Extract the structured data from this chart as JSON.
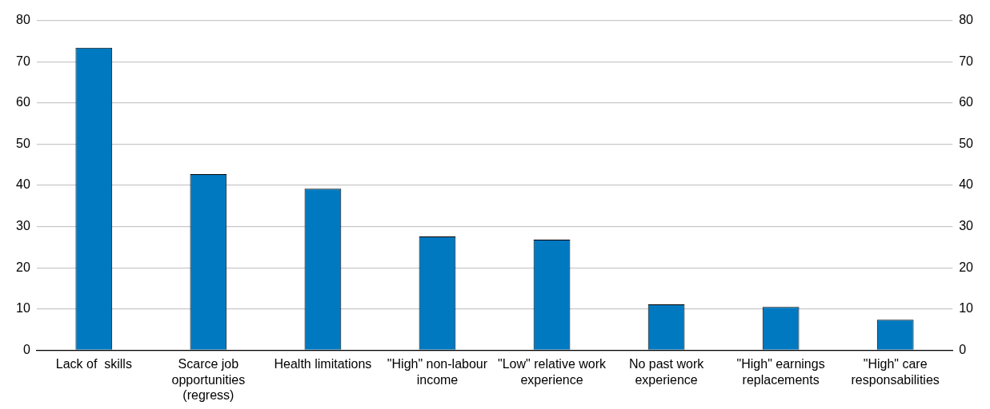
{
  "chart_data": {
    "type": "bar",
    "categories": [
      "Lack of  skills",
      "Scarce job opportunities (regress)",
      "Health limitations",
      "\"High\" non-labour income",
      "\"Low\" relative work experience",
      "No past work experience",
      "\"High\" earnings replacements",
      "\"High\" care responsabilities"
    ],
    "values": [
      73.4,
      42.7,
      39.2,
      27.6,
      26.8,
      11.1,
      10.5,
      7.4
    ],
    "color": "#0079c1",
    "ylim": [
      0,
      80
    ],
    "yticks": [
      0,
      10,
      20,
      30,
      40,
      50,
      60,
      70,
      80
    ],
    "y2lim": [
      0,
      80
    ],
    "y2ticks": [
      0,
      10,
      20,
      30,
      40,
      50,
      60,
      70,
      80
    ],
    "grid": "y",
    "legend": false
  }
}
